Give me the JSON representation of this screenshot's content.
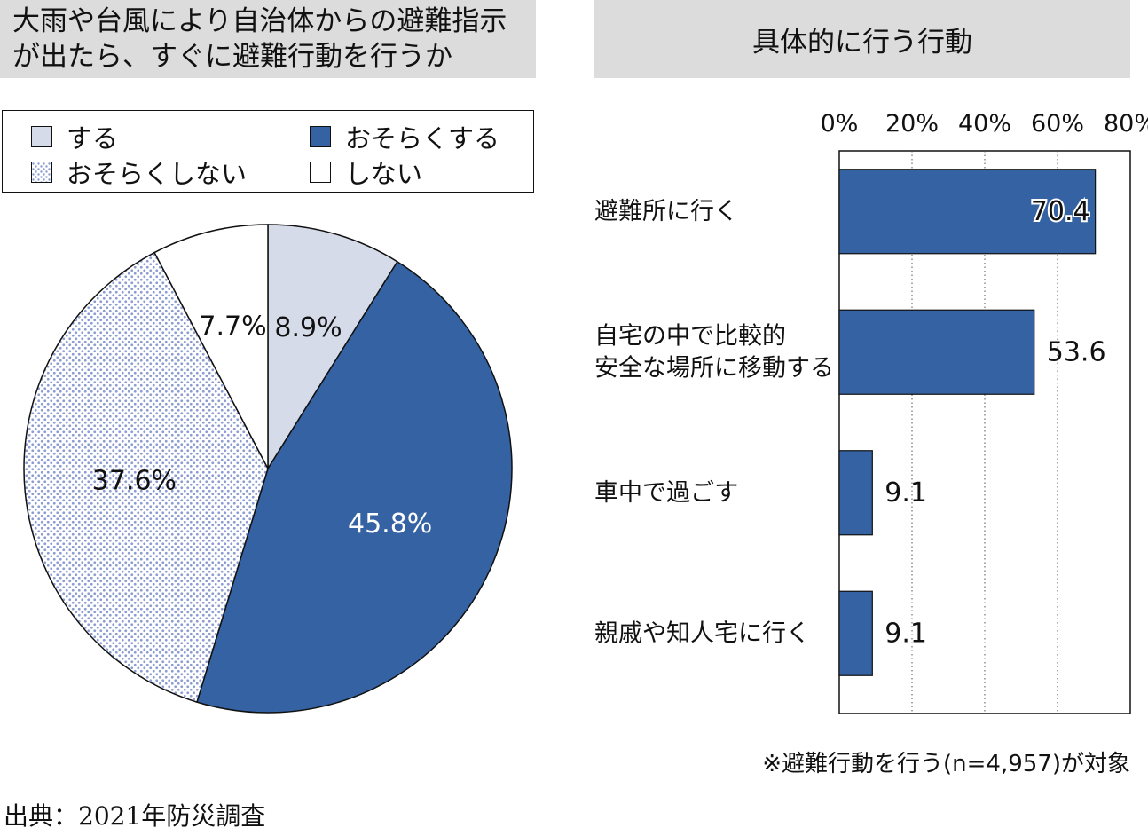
{
  "left_title": {
    "line1": "大雨や台風により自治体からの避難指示",
    "line2": "が出たら、すぐに避難行動を行うか"
  },
  "right_title": "具体的に行う行動",
  "legend": [
    {
      "label": "する",
      "color": "#d6dbe9",
      "pattern": "solid"
    },
    {
      "label": "おそらくする",
      "color": "#3562a3",
      "pattern": "solid"
    },
    {
      "label": "おそらくしない",
      "color": "#8b9cd0",
      "pattern": "dots"
    },
    {
      "label": "しない",
      "color": "#ffffff",
      "pattern": "solid"
    }
  ],
  "chart_data": [
    {
      "type": "pie",
      "title": "大雨や台風により自治体からの避難指示が出たら、すぐに避難行動を行うか",
      "start_angle": "12 o'clock, clockwise",
      "slices": [
        {
          "label": "する",
          "value": 8.9,
          "display": "8.9%",
          "color": "#d6dbe9",
          "pattern": "solid"
        },
        {
          "label": "おそらくする",
          "value": 45.8,
          "display": "45.8%",
          "color": "#3562a3",
          "pattern": "solid"
        },
        {
          "label": "おそらくしない",
          "value": 37.6,
          "display": "37.6%",
          "color": "#8b9cd0",
          "pattern": "dots"
        },
        {
          "label": "しない",
          "value": 7.7,
          "display": "7.7%",
          "color": "#ffffff",
          "pattern": "solid"
        }
      ]
    },
    {
      "type": "bar",
      "orientation": "horizontal",
      "title": "具体的に行う行動",
      "categories": [
        [
          "避難所に行く"
        ],
        [
          "自宅の中で比較的",
          "安全な場所に移動する"
        ],
        [
          "車中で過ごす"
        ],
        [
          "親戚や知人宅に行く"
        ]
      ],
      "values": [
        70.4,
        53.6,
        9.1,
        9.1
      ],
      "value_labels": [
        "70.4",
        "53.6",
        "9.1",
        "9.1"
      ],
      "xlim": [
        0,
        80
      ],
      "ticks": [
        "0%",
        "20%",
        "40%",
        "60%",
        "80%"
      ],
      "grid": "dotted vertical",
      "bar_color": "#3562a3"
    }
  ],
  "note": "※避難行動を行う(n=4,957)が対象",
  "source": "出典：2021年防災調査"
}
